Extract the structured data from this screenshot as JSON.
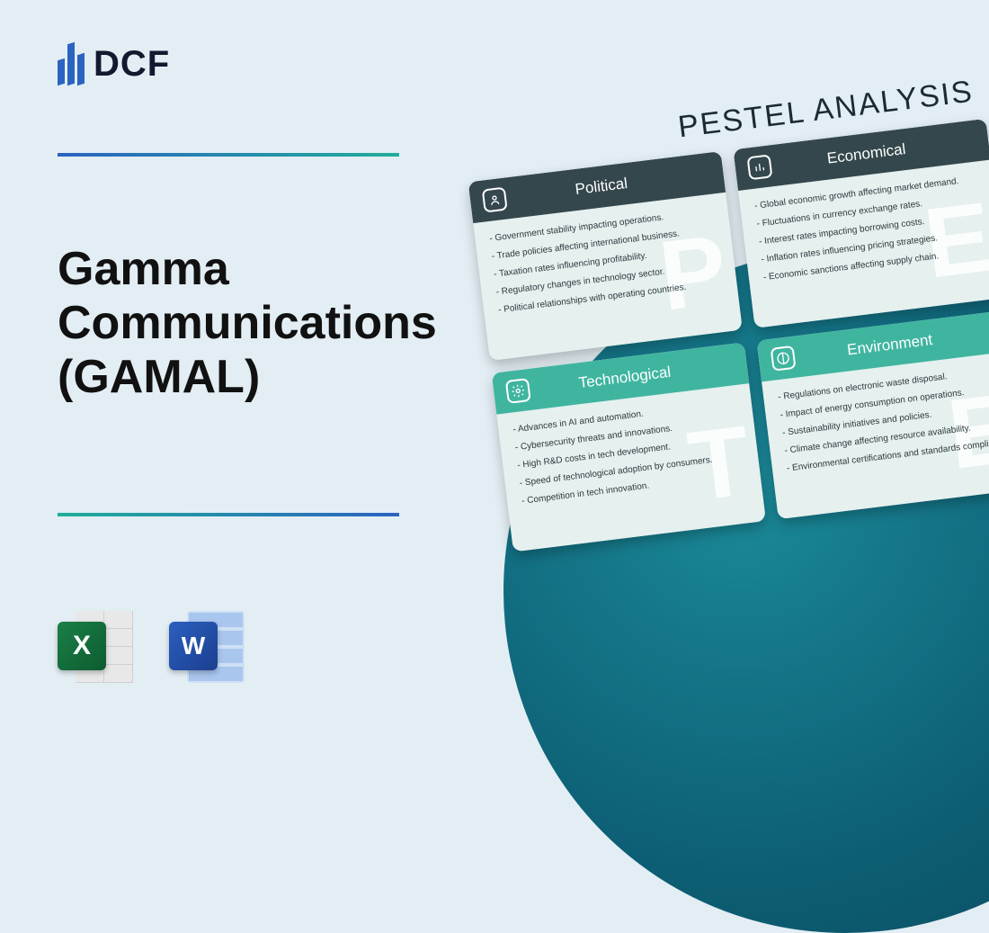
{
  "logo": {
    "text": "DCF"
  },
  "title": "Gamma\nCommunications\n(GAMAL)",
  "appIcons": {
    "excel": "X",
    "word": "W"
  },
  "divider": {
    "gradient_start": "#2b63c1",
    "gradient_end": "#1fae9a"
  },
  "background_color": "#e3eef4",
  "circle_gradient": [
    "#1b8a99",
    "#0d5f75",
    "#0a4a5e"
  ],
  "pestel": {
    "title": "PESTEL ANALYSIS",
    "cards": [
      {
        "title": "Political",
        "header_color": "#34474c",
        "watermark": "P",
        "items": [
          "Government stability impacting operations.",
          "Trade policies affecting international business.",
          "Taxation rates influencing profitability.",
          "Regulatory changes in technology sector.",
          "Political relationships with operating countries."
        ]
      },
      {
        "title": "Economical",
        "header_color": "#34474c",
        "watermark": "E",
        "items": [
          "Global economic growth affecting market demand.",
          "Fluctuations in currency exchange rates.",
          "Interest rates impacting borrowing costs.",
          "Inflation rates influencing pricing strategies.",
          "Economic sanctions affecting supply chain."
        ]
      },
      {
        "title": "Technological",
        "header_color": "#3fb5a0",
        "watermark": "T",
        "items": [
          "Advances in AI and automation.",
          "Cybersecurity threats and innovations.",
          "High R&D costs in tech development.",
          "Speed of technological adoption by consumers.",
          "Competition in tech innovation."
        ]
      },
      {
        "title": "Environment",
        "header_color": "#3fb5a0",
        "watermark": "E",
        "items": [
          "Regulations on electronic waste disposal.",
          "Impact of energy consumption on operations.",
          "Sustainability initiatives and policies.",
          "Climate change affecting resource availability.",
          "Environmental certifications and standards compliance."
        ]
      }
    ]
  }
}
